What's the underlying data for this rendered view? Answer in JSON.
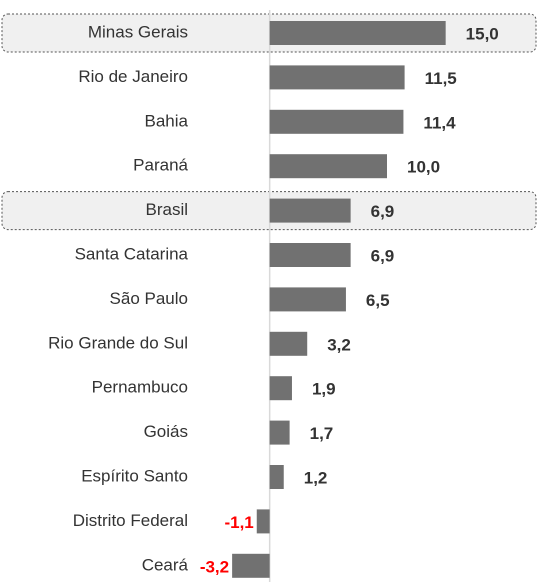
{
  "chart_data": {
    "type": "hbar",
    "categories": [
      "Minas Gerais",
      "Rio de Janeiro",
      "Bahia",
      "Paraná",
      "Brasil",
      "Santa Catarina",
      "São Paulo",
      "Rio Grande do Sul",
      "Pernambuco",
      "Goiás",
      "Espírito Santo",
      "Distrito Federal",
      "Ceará"
    ],
    "values": [
      15.0,
      11.5,
      11.4,
      10.0,
      6.9,
      6.9,
      6.5,
      3.2,
      1.9,
      1.7,
      1.2,
      -1.1,
      -3.2
    ],
    "value_labels": [
      "15,0",
      "11,5",
      "11,4",
      "10,0",
      "6,9",
      "6,9",
      "6,5",
      "3,2",
      "1,9",
      "1,7",
      "1,2",
      "-1,1",
      "-3,2"
    ],
    "color": "#717171",
    "label_color": "#333333",
    "negative_label_color": "#ff0000",
    "highlight_indices": [
      0,
      4
    ],
    "xlim": [
      -5,
      17.5
    ]
  }
}
